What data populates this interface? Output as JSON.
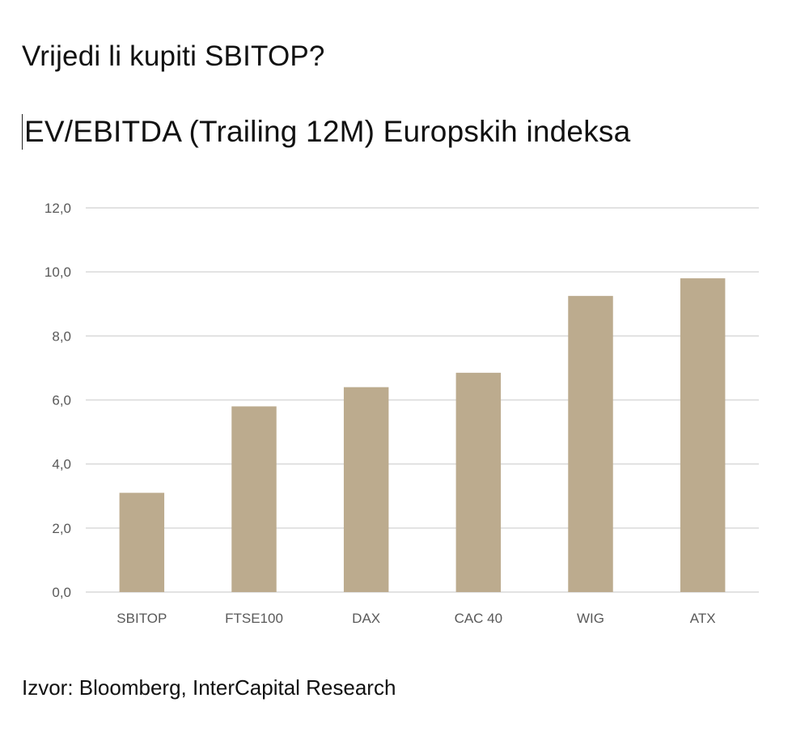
{
  "page": {
    "title": "Vrijedi li kupiti SBITOP?",
    "source": "Izvor: Bloomberg, InterCapital Research"
  },
  "chart_data": {
    "type": "bar",
    "title": "EV/EBITDA (Trailing 12M) Europskih indeksa",
    "xlabel": "",
    "ylabel": "",
    "categories": [
      "SBITOP",
      "FTSE100",
      "DAX",
      "CAC 40",
      "WIG",
      "ATX"
    ],
    "values": [
      3.1,
      5.8,
      6.4,
      6.85,
      9.25,
      9.8
    ],
    "ylim": [
      0,
      12
    ],
    "yticks": [
      "0,0",
      "2,0",
      "4,0",
      "6,0",
      "8,0",
      "10,0",
      "12,0"
    ],
    "grid": true,
    "legend": "none",
    "bar_color": "#bcab8e",
    "grid_color": "#d9d9d9",
    "tick_label_color": "#595959"
  }
}
